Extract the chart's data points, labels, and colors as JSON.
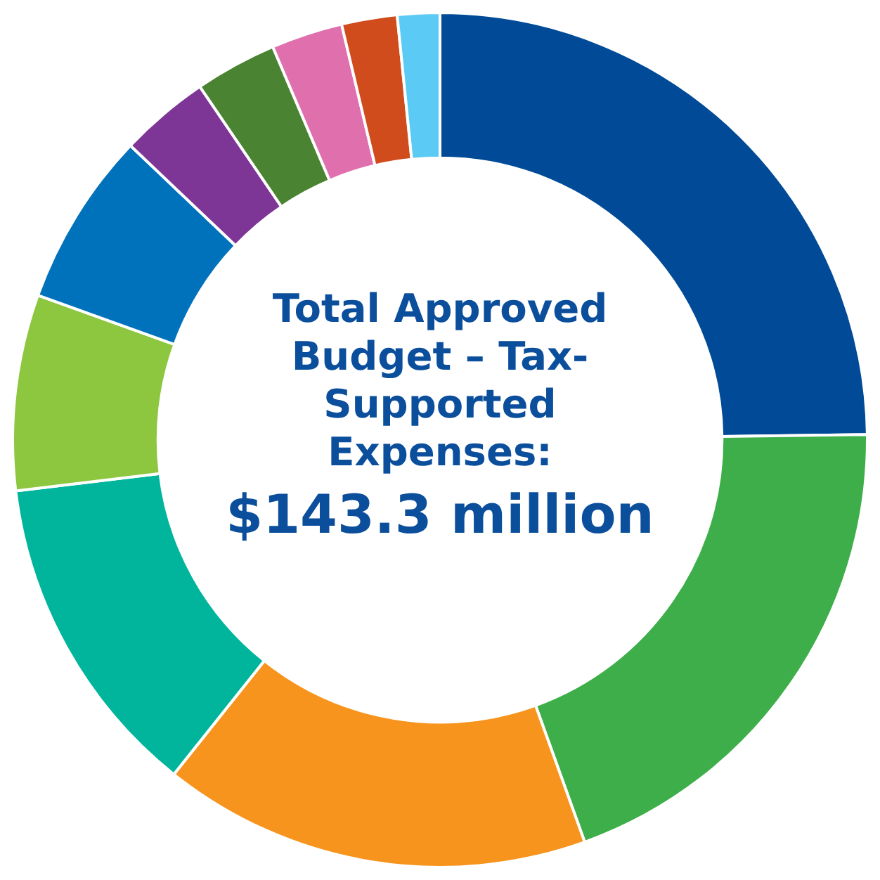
{
  "chart_data": {
    "type": "donut",
    "title": "Total Approved Budget – Tax-Supported Expenses:",
    "subtitle": "$143.3 million",
    "categories": [
      null,
      null,
      null,
      null,
      null,
      null,
      null,
      null,
      null,
      null,
      null
    ],
    "values": [
      24.8,
      19.7,
      16.2,
      12.4,
      7.4,
      6.6,
      3.4,
      3.1,
      2.7,
      2.1,
      1.6
    ],
    "colors": [
      "#004a97",
      "#3dae49",
      "#f7941d",
      "#00b59c",
      "#8dc63f",
      "#0072bc",
      "#7d3596",
      "#4a8433",
      "#e06fae",
      "#d04c1d",
      "#5bcbf5"
    ]
  }
}
